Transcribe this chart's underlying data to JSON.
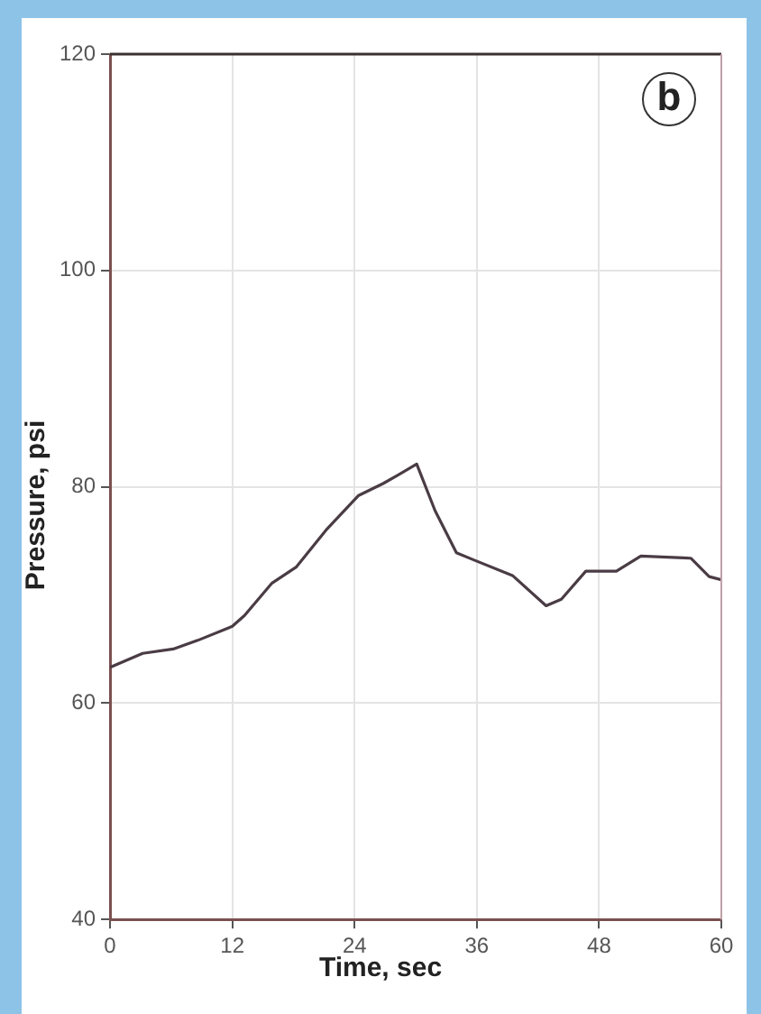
{
  "chart_data": {
    "type": "line",
    "xlabel": "Time, sec",
    "ylabel": "Pressure, psi",
    "annotations": [
      "b"
    ],
    "x": [
      0,
      3.2,
      6.2,
      8.6,
      12,
      13.2,
      15.9,
      18.3,
      21.3,
      24.4,
      26.8,
      28.3,
      30.1,
      31.9,
      34,
      35.8,
      39.5,
      42.8,
      44.3,
      46.7,
      49.7,
      52.1,
      57,
      58.8,
      60
    ],
    "series": [
      {
        "color": "#4a3c44",
        "values": [
          63.3,
          64.6,
          65,
          65.8,
          67.1,
          68.1,
          71.1,
          72.6,
          76.1,
          79.2,
          80.3,
          81.1,
          82.1,
          77.8,
          73.9,
          73.2,
          71.8,
          69,
          69.6,
          72.2,
          72.2,
          73.6,
          73.4,
          71.7,
          71.4
        ]
      }
    ],
    "xlim": [
      0,
      60
    ],
    "xticks": [
      0,
      12,
      24,
      36,
      48,
      60
    ],
    "ylim": [
      40,
      120
    ],
    "yticks": [
      40,
      60,
      80,
      100,
      120
    ],
    "grid": true,
    "legend": false,
    "marker": "none",
    "line_style": "solid"
  }
}
